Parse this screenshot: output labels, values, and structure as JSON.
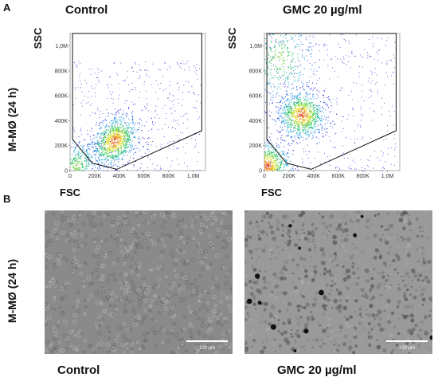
{
  "panel_a": {
    "letter": "A",
    "row_label": "M-MØ (24 h)",
    "plots": [
      {
        "title": "Control",
        "ylabel": "SSC",
        "xlabel": "FSC"
      },
      {
        "title": "GMC 20 µg/ml",
        "ylabel": "SSC",
        "xlabel": "FSC"
      }
    ]
  },
  "panel_b": {
    "letter": "B",
    "row_label": "M-MØ (24 h)",
    "images": [
      {
        "caption": "Control",
        "scalebar": "100 µm"
      },
      {
        "caption": "GMC 20 µg/ml",
        "scalebar": "100 µm"
      }
    ]
  },
  "chart_data": [
    {
      "type": "scatter",
      "title": "Control",
      "xlabel": "FSC",
      "ylabel": "SSC",
      "xticks": [
        "0",
        "200K",
        "400K",
        "600K",
        "800K",
        "1,0M"
      ],
      "yticks": [
        "0",
        "200K",
        "400K",
        "600K",
        "800K",
        "1,0M"
      ],
      "xlim": [
        0,
        1100000
      ],
      "ylim": [
        0,
        1100000
      ],
      "gate_polygon": [
        [
          180000,
          60000
        ],
        [
          380000,
          10000
        ],
        [
          1070000,
          320000
        ],
        [
          1070000,
          1100000
        ],
        [
          20000,
          1100000
        ],
        [
          20000,
          250000
        ]
      ],
      "population_centroids": [
        {
          "x": 360000,
          "y": 240000,
          "density": "high"
        },
        {
          "x": 50000,
          "y": 40000,
          "density": "medium"
        }
      ]
    },
    {
      "type": "scatter",
      "title": "GMC 20 µg/ml",
      "xlabel": "FSC",
      "ylabel": "SSC",
      "xticks": [
        "0",
        "200K",
        "400K",
        "600K",
        "800K",
        "1,0M"
      ],
      "yticks": [
        "0",
        "200K",
        "400K",
        "600K",
        "800K",
        "1,0M"
      ],
      "xlim": [
        0,
        1100000
      ],
      "ylim": [
        0,
        1100000
      ],
      "gate_polygon": [
        [
          180000,
          60000
        ],
        [
          380000,
          10000
        ],
        [
          1070000,
          320000
        ],
        [
          1070000,
          1100000
        ],
        [
          20000,
          1100000
        ],
        [
          20000,
          250000
        ]
      ],
      "population_centroids": [
        {
          "x": 300000,
          "y": 450000,
          "density": "high"
        },
        {
          "x": 120000,
          "y": 900000,
          "density": "medium"
        },
        {
          "x": 20000,
          "y": 40000,
          "density": "high"
        }
      ]
    }
  ]
}
